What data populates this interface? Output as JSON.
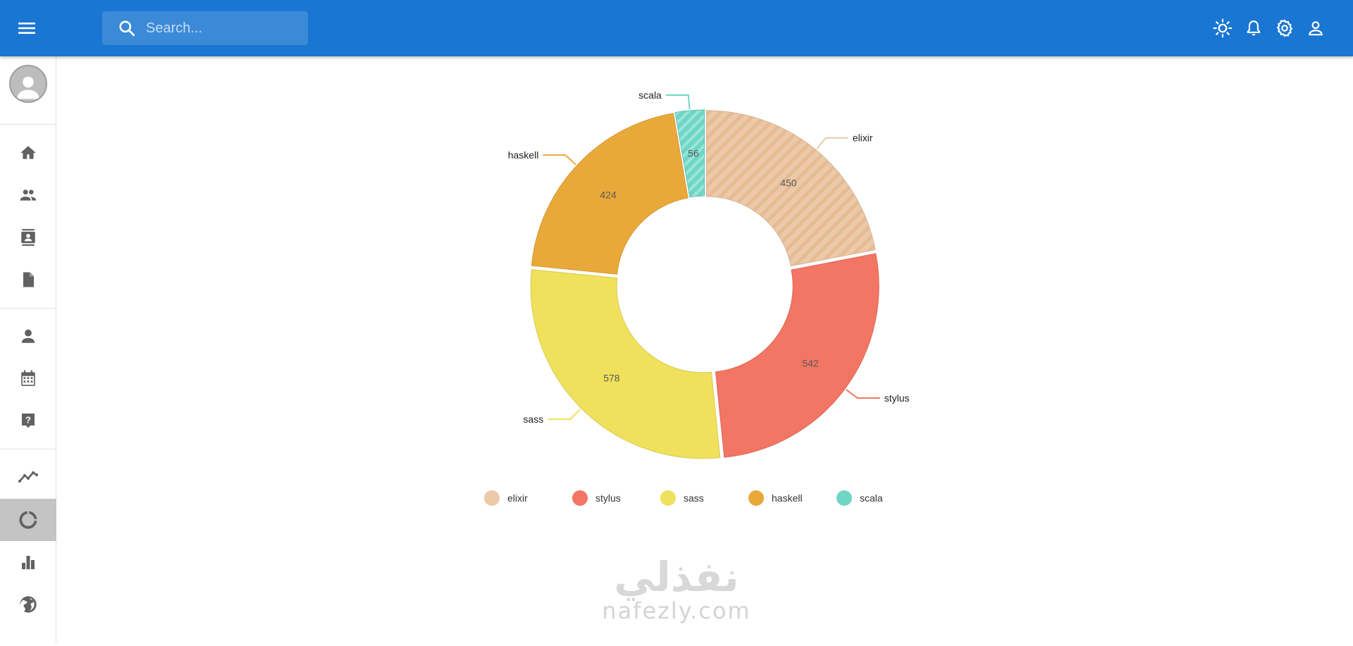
{
  "header": {
    "search_placeholder": "Search...",
    "menu_icon": "menu-icon",
    "icons": [
      "theme-toggle-sun-icon",
      "notifications-bell-icon",
      "settings-gear-icon",
      "account-user-icon"
    ]
  },
  "sidebar": {
    "items": [
      {
        "icon": "home-icon"
      },
      {
        "icon": "people-icon"
      },
      {
        "icon": "contacts-icon"
      },
      {
        "icon": "document-icon"
      },
      {
        "icon": "person-icon"
      },
      {
        "icon": "calendar-icon"
      },
      {
        "icon": "help-icon"
      },
      {
        "icon": "line-chart-icon"
      },
      {
        "icon": "pie-chart-icon",
        "active": true
      },
      {
        "icon": "bar-chart-icon"
      },
      {
        "icon": "globe-icon"
      }
    ]
  },
  "colors": {
    "primary": "#1976d2",
    "elixir": "#ecc9a8",
    "stylus": "#f37563",
    "sass": "#efe15b",
    "haskell": "#e9a93a",
    "scala": "#6fd6c5"
  },
  "chart_data": {
    "type": "pie",
    "donut": true,
    "categories": [
      "elixir",
      "stylus",
      "sass",
      "haskell",
      "scala"
    ],
    "values": [
      450,
      542,
      578,
      424,
      56
    ],
    "patterned": [
      "elixir",
      "scala"
    ],
    "legend_position": "bottom"
  },
  "watermark": {
    "arabic": "نفذلي",
    "latin": "nafezly.com"
  }
}
